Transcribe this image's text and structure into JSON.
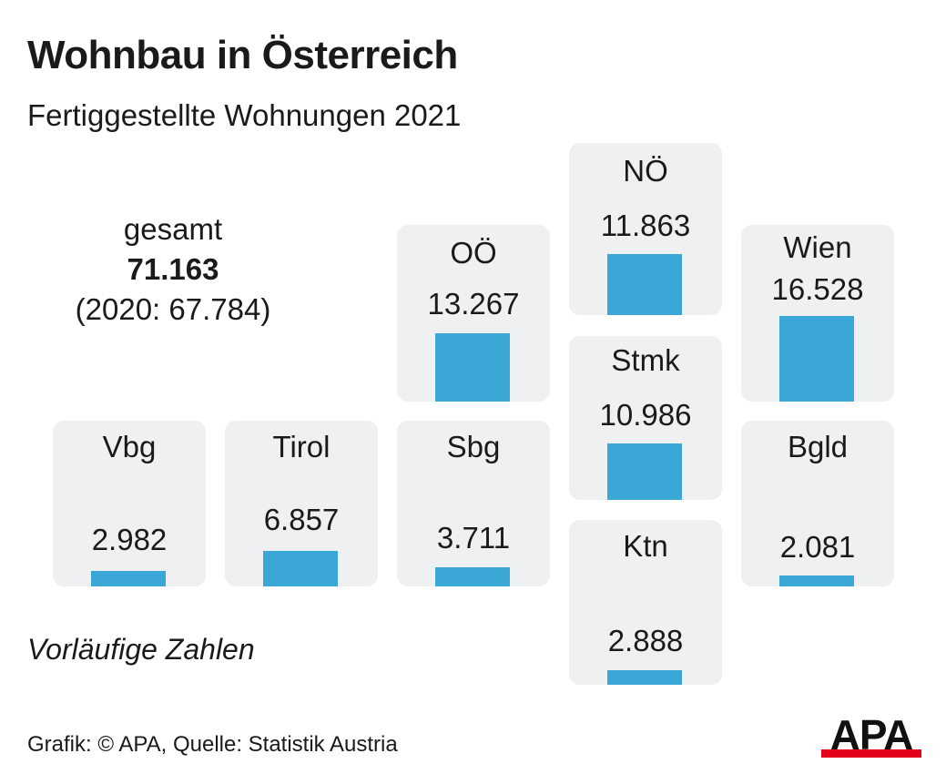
{
  "title": "Wohnbau in Österreich",
  "subtitle": "Fertiggestellte Wohnungen 2021",
  "total": {
    "label": "gesamt",
    "value": "71.163",
    "previous": "(2020: 67.784)"
  },
  "note": "Vorläufige Zahlen",
  "source": "Grafik: © APA, Quelle: Statistik Austria",
  "logo": "APA",
  "colors": {
    "bar": "#3aa7d6",
    "tile": "#eef0f1",
    "logo_accent": "#e3001b"
  },
  "chart_data": {
    "type": "bar",
    "title": "Wohnbau in Österreich",
    "subtitle": "Fertiggestellte Wohnungen 2021",
    "categories": [
      "Vbg",
      "Tirol",
      "Sbg",
      "OÖ",
      "NÖ",
      "Stmk",
      "Ktn",
      "Wien",
      "Bgld"
    ],
    "values": [
      2982,
      6857,
      3711,
      13267,
      11863,
      10986,
      2888,
      16528,
      2081
    ],
    "labels": [
      "2.982",
      "6.857",
      "3.711",
      "13.267",
      "11.863",
      "10.986",
      "2.888",
      "16.528",
      "2.081"
    ]
  }
}
